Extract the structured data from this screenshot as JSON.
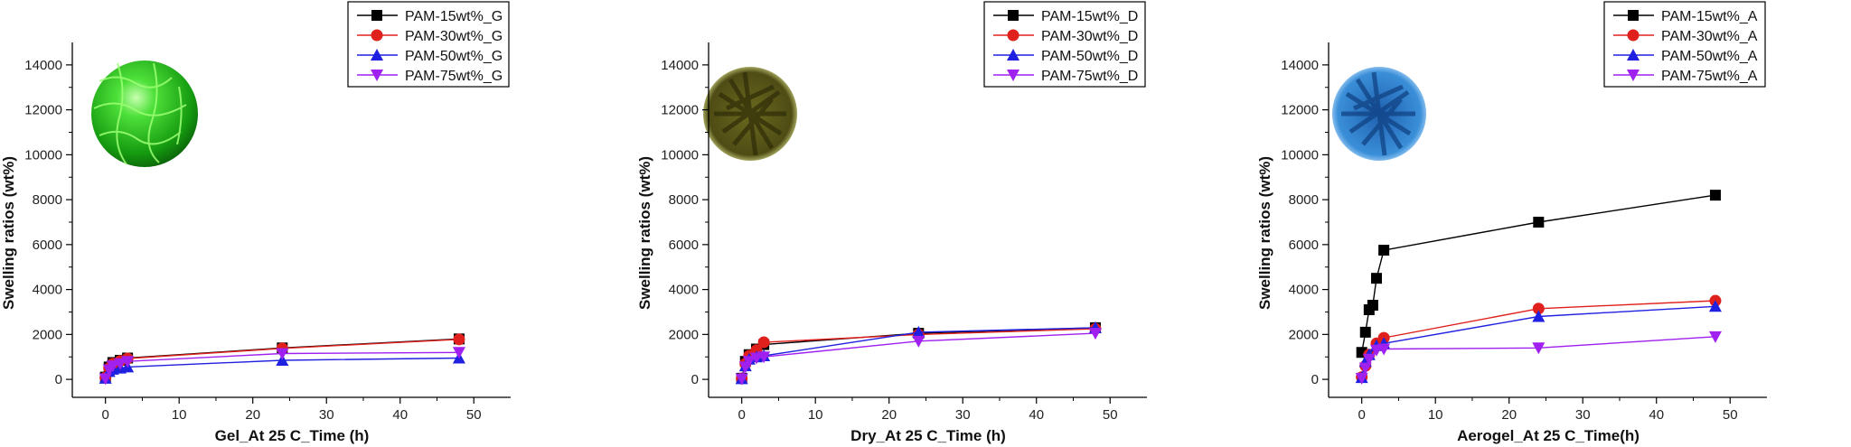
{
  "chart_data": [
    {
      "type": "line",
      "xlabel": "Gel_At 25 C_Time (h)",
      "ylabel": "Swelling ratios (wt%)",
      "xlim": [
        -4.5,
        55
      ],
      "ylim": [
        -800,
        15000
      ],
      "xticks": [
        0,
        10,
        20,
        30,
        40,
        50
      ],
      "yticks": [
        0,
        2000,
        4000,
        6000,
        8000,
        10000,
        12000,
        14000
      ],
      "legend_position": "top-right",
      "image_icon": "green-hydrogel-sphere",
      "series": [
        {
          "name": "PAM-15wt%_G",
          "color": "#000000",
          "marker": "square",
          "x": [
            0,
            0.5,
            1,
            2,
            3,
            24,
            48
          ],
          "y": [
            100,
            550,
            750,
            850,
            950,
            1400,
            1800
          ]
        },
        {
          "name": "PAM-30wt%_G",
          "color": "#e0201c",
          "marker": "circle",
          "x": [
            0,
            0.5,
            1,
            2,
            3,
            24,
            48
          ],
          "y": [
            80,
            500,
            700,
            820,
            930,
            1380,
            1780
          ]
        },
        {
          "name": "PAM-50wt%_G",
          "color": "#2020e0",
          "marker": "triangle-up",
          "x": [
            0,
            0.5,
            1,
            2,
            3,
            24,
            48
          ],
          "y": [
            50,
            350,
            450,
            500,
            550,
            850,
            950
          ]
        },
        {
          "name": "PAM-75wt%_G",
          "color": "#a020f0",
          "marker": "triangle-down",
          "x": [
            0,
            0.5,
            1,
            2,
            3,
            24,
            48
          ],
          "y": [
            30,
            420,
            600,
            700,
            800,
            1150,
            1200
          ]
        }
      ]
    },
    {
      "type": "line",
      "xlabel": "Dry_At 25 C_Time (h)",
      "ylabel": "Swelling ratios (wt%)",
      "xlim": [
        -4.5,
        55
      ],
      "ylim": [
        -800,
        15000
      ],
      "xticks": [
        0,
        10,
        20,
        30,
        40,
        50
      ],
      "yticks": [
        0,
        2000,
        4000,
        6000,
        8000,
        10000,
        12000,
        14000
      ],
      "legend_position": "top-right",
      "image_icon": "olive-dried-particle",
      "series": [
        {
          "name": "PAM-15wt%_D",
          "color": "#000000",
          "marker": "square",
          "x": [
            0,
            0.5,
            1,
            2,
            3,
            24,
            48
          ],
          "y": [
            50,
            800,
            1100,
            1350,
            1550,
            2050,
            2300
          ]
        },
        {
          "name": "PAM-30wt%_D",
          "color": "#e0201c",
          "marker": "circle",
          "x": [
            0,
            0.5,
            1,
            2,
            3,
            24,
            48
          ],
          "y": [
            40,
            700,
            1050,
            1300,
            1650,
            2000,
            2250
          ]
        },
        {
          "name": "PAM-50wt%_D",
          "color": "#2020e0",
          "marker": "triangle-up",
          "x": [
            0,
            0.5,
            1,
            2,
            3,
            24,
            48
          ],
          "y": [
            30,
            600,
            900,
            1000,
            1050,
            2100,
            2300
          ]
        },
        {
          "name": "PAM-75wt%_D",
          "color": "#a020f0",
          "marker": "triangle-down",
          "x": [
            0,
            0.5,
            1,
            2,
            3,
            24,
            48
          ],
          "y": [
            20,
            550,
            800,
            950,
            1000,
            1700,
            2050
          ]
        }
      ]
    },
    {
      "type": "line",
      "xlabel": "Aerogel_At 25 C_Time(h)",
      "ylabel": "Swelling ratios (wt%)",
      "xlim": [
        -4.5,
        55
      ],
      "ylim": [
        -800,
        15000
      ],
      "xticks": [
        0,
        10,
        20,
        30,
        40,
        50
      ],
      "yticks": [
        0,
        2000,
        4000,
        6000,
        8000,
        10000,
        12000,
        14000
      ],
      "legend_position": "top-right",
      "image_icon": "blue-aerogel-particle",
      "series": [
        {
          "name": "PAM-15wt%_A",
          "color": "#000000",
          "marker": "square",
          "x": [
            0,
            0.5,
            1,
            1.5,
            2,
            3,
            24,
            48
          ],
          "y": [
            1200,
            2100,
            3100,
            3300,
            4500,
            5750,
            7000,
            8200
          ]
        },
        {
          "name": "PAM-30wt%_A",
          "color": "#e0201c",
          "marker": "circle",
          "x": [
            0,
            0.5,
            1,
            2,
            3,
            24,
            48
          ],
          "y": [
            100,
            600,
            1100,
            1600,
            1850,
            3150,
            3500
          ]
        },
        {
          "name": "PAM-50wt%_A",
          "color": "#2020e0",
          "marker": "triangle-up",
          "x": [
            0,
            0.5,
            1,
            2,
            3,
            24,
            48
          ],
          "y": [
            80,
            800,
            1100,
            1500,
            1600,
            2800,
            3250
          ]
        },
        {
          "name": "PAM-75wt%_A",
          "color": "#a020f0",
          "marker": "triangle-down",
          "x": [
            0,
            0.5,
            1,
            2,
            3,
            24,
            48
          ],
          "y": [
            50,
            500,
            900,
            1300,
            1350,
            1400,
            1900
          ]
        }
      ]
    }
  ]
}
